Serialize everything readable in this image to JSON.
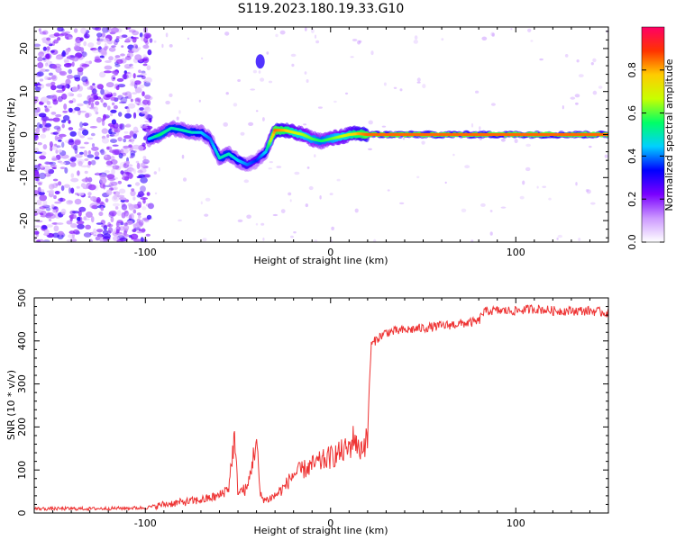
{
  "figure_title": "S119.2023.180.19.33.G10",
  "chart_data": [
    {
      "type": "heatmap",
      "xlabel": "Height of straight line (km)",
      "ylabel": "Frequency (Hz)",
      "xlim": [
        -160,
        150
      ],
      "ylim": [
        -25,
        25
      ],
      "x_ticks": [
        -100,
        0,
        100
      ],
      "y_ticks": [
        -20,
        -10,
        0,
        10,
        20
      ],
      "colorbar": {
        "label": "Normalized spectral amplitude",
        "range": [
          0,
          1
        ],
        "ticks": [
          "0.0",
          "0.2",
          "0.4",
          "0.6",
          "0.8"
        ],
        "tick_values": [
          0.0,
          0.2,
          0.4,
          0.6,
          0.8
        ],
        "colors": [
          "#ffffff",
          "#cc99ff",
          "#7a00ff",
          "#0000ff",
          "#00d0ff",
          "#00ff66",
          "#c8ff00",
          "#ffcc00",
          "#ff3300",
          "#ff0066"
        ]
      },
      "track": {
        "x": [
          -98,
          -92,
          -86,
          -80,
          -75,
          -70,
          -65,
          -60,
          -55,
          -50,
          -45,
          -40,
          -35,
          -30,
          -25,
          -20,
          -15,
          -10,
          -5,
          0,
          5,
          10,
          15,
          20,
          40,
          60,
          80,
          100,
          120,
          140,
          150
        ],
        "y": [
          -1.0,
          0.0,
          1.5,
          1.0,
          0.5,
          0.5,
          -1.0,
          -5.5,
          -4.5,
          -6.0,
          -7.0,
          -6.0,
          -4.0,
          1.0,
          1.0,
          0.5,
          0.0,
          -1.0,
          -1.5,
          -1.0,
          -0.5,
          0.0,
          0.2,
          0.0,
          0.0,
          0.0,
          0.0,
          0.0,
          0.0,
          0.0,
          0.0
        ],
        "amplitude": [
          0.45,
          0.55,
          0.5,
          0.5,
          0.5,
          0.45,
          0.4,
          0.5,
          0.5,
          0.45,
          0.4,
          0.35,
          0.45,
          0.85,
          0.8,
          0.7,
          0.65,
          0.6,
          0.55,
          0.6,
          0.65,
          0.7,
          0.8,
          0.85,
          0.85,
          0.85,
          0.85,
          0.85,
          0.85,
          0.85,
          0.85
        ]
      },
      "side_blob": {
        "x": -38,
        "y": 17,
        "amplitude": 0.3
      },
      "noise_region": {
        "x": [
          -160,
          -97
        ],
        "y": [
          -25,
          25
        ],
        "amplitude": [
          0.05,
          0.3
        ]
      }
    },
    {
      "type": "line",
      "xlabel": "Height of straight line (km)",
      "ylabel": "SNR (10 * v/v)",
      "xlim": [
        -160,
        150
      ],
      "ylim": [
        0,
        500
      ],
      "x_ticks": [
        -100,
        0,
        100
      ],
      "y_ticks": [
        0,
        100,
        200,
        300,
        400,
        500
      ],
      "color": "#ee3333",
      "series": [
        {
          "x": [
            -160,
            -130,
            -100,
            -90,
            -80,
            -70,
            -60,
            -55,
            -52,
            -50,
            -45,
            -40,
            -38,
            -35,
            -30,
            -25,
            -20,
            -15,
            -10,
            -5,
            0,
            5,
            10,
            13,
            15,
            18,
            20,
            21,
            22,
            25,
            30,
            40,
            50,
            60,
            70,
            80,
            82,
            85,
            90,
            100,
            110,
            120,
            130,
            140,
            150
          ],
          "y": [
            10,
            10,
            12,
            20,
            25,
            30,
            40,
            60,
            175,
            50,
            55,
            170,
            40,
            30,
            40,
            60,
            90,
            100,
            110,
            120,
            130,
            140,
            150,
            180,
            145,
            160,
            170,
            310,
            390,
            405,
            420,
            425,
            430,
            435,
            440,
            445,
            465,
            470,
            470,
            470,
            475,
            470,
            470,
            470,
            465
          ]
        }
      ]
    }
  ]
}
